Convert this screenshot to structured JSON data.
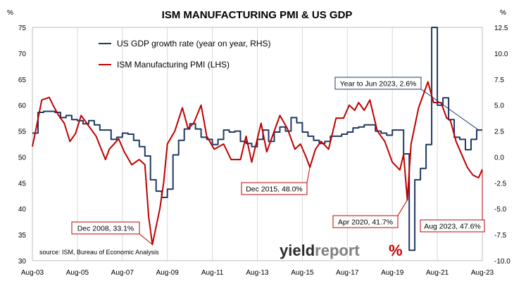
{
  "chart_data": {
    "type": "line",
    "title": "ISM MANUFACTURING PMI & US GDP",
    "y_left_unit": "%",
    "y_right_unit": "%",
    "y_left": {
      "min": 30,
      "max": 75,
      "ticks": [
        "30",
        "35",
        "40",
        "45",
        "50",
        "55",
        "60",
        "65",
        "70",
        "75"
      ]
    },
    "y_right": {
      "min": -10,
      "max": 12.5,
      "ticks": [
        "-10.0",
        "-7.5",
        "-5.0",
        "-2.5",
        "0.0",
        "2.5",
        "5.0",
        "7.5",
        "10.0",
        "12.5"
      ]
    },
    "x_range": [
      "2003-08",
      "2023-08"
    ],
    "x_ticks": [
      "Aug-03",
      "Aug-05",
      "Aug-07",
      "Aug-09",
      "Aug-11",
      "Aug-13",
      "Aug-15",
      "Aug-17",
      "Aug-19",
      "Aug-21",
      "Aug-23"
    ],
    "grid": "vertical",
    "legend_position": "top-left",
    "series": [
      {
        "name": "US GDP growth rate (year on year, RHS)",
        "axis": "right",
        "color": "#1f3864",
        "step": true,
        "points": [
          [
            "2003-08",
            2.3
          ],
          [
            "2003-11",
            4.3
          ],
          [
            "2004-02",
            4.4
          ],
          [
            "2004-05",
            4.4
          ],
          [
            "2004-08",
            4.3
          ],
          [
            "2004-11",
            3.8
          ],
          [
            "2005-02",
            4.0
          ],
          [
            "2005-05",
            3.6
          ],
          [
            "2005-08",
            3.5
          ],
          [
            "2005-11",
            3.2
          ],
          [
            "2006-02",
            3.5
          ],
          [
            "2006-05",
            3.1
          ],
          [
            "2006-08",
            2.6
          ],
          [
            "2006-11",
            2.6
          ],
          [
            "2007-02",
            1.7
          ],
          [
            "2007-05",
            1.9
          ],
          [
            "2007-08",
            2.3
          ],
          [
            "2007-11",
            2.2
          ],
          [
            "2008-02",
            1.6
          ],
          [
            "2008-05",
            1.0
          ],
          [
            "2008-08",
            0.1
          ],
          [
            "2008-11",
            -2.2
          ],
          [
            "2009-02",
            -3.3
          ],
          [
            "2009-05",
            -3.9
          ],
          [
            "2009-08",
            -3.1
          ],
          [
            "2009-11",
            0.2
          ],
          [
            "2010-02",
            1.6
          ],
          [
            "2010-05",
            2.7
          ],
          [
            "2010-08",
            3.2
          ],
          [
            "2010-11",
            2.7
          ],
          [
            "2011-02",
            1.9
          ],
          [
            "2011-05",
            1.7
          ],
          [
            "2011-08",
            1.2
          ],
          [
            "2011-11",
            1.7
          ],
          [
            "2012-02",
            2.6
          ],
          [
            "2012-05",
            2.4
          ],
          [
            "2012-08",
            2.5
          ],
          [
            "2012-11",
            1.5
          ],
          [
            "2013-02",
            1.3
          ],
          [
            "2013-05",
            1.0
          ],
          [
            "2013-08",
            1.7
          ],
          [
            "2013-11",
            2.6
          ],
          [
            "2014-02",
            1.5
          ],
          [
            "2014-05",
            2.4
          ],
          [
            "2014-08",
            2.9
          ],
          [
            "2014-11",
            2.5
          ],
          [
            "2015-02",
            3.8
          ],
          [
            "2015-05",
            3.3
          ],
          [
            "2015-08",
            2.4
          ],
          [
            "2015-11",
            2.0
          ],
          [
            "2016-02",
            1.6
          ],
          [
            "2016-05",
            1.3
          ],
          [
            "2016-08",
            1.5
          ],
          [
            "2016-11",
            2.0
          ],
          [
            "2017-02",
            2.0
          ],
          [
            "2017-05",
            2.2
          ],
          [
            "2017-08",
            2.4
          ],
          [
            "2017-11",
            2.8
          ],
          [
            "2018-02",
            2.9
          ],
          [
            "2018-05",
            3.1
          ],
          [
            "2018-08",
            3.1
          ],
          [
            "2018-11",
            2.5
          ],
          [
            "2019-02",
            2.3
          ],
          [
            "2019-05",
            2.1
          ],
          [
            "2019-08",
            2.6
          ],
          [
            "2019-11",
            2.6
          ],
          [
            "2020-02",
            0.3
          ],
          [
            "2020-05",
            -9.0
          ],
          [
            "2020-08",
            -2.2
          ],
          [
            "2020-11",
            -1.1
          ],
          [
            "2021-02",
            1.2
          ],
          [
            "2021-05",
            12.5
          ],
          [
            "2021-08",
            5.0
          ],
          [
            "2021-11",
            5.7
          ],
          [
            "2022-02",
            3.6
          ],
          [
            "2022-05",
            1.9
          ],
          [
            "2022-08",
            1.7
          ],
          [
            "2022-11",
            0.7
          ],
          [
            "2023-02",
            1.7
          ],
          [
            "2023-05",
            2.6
          ],
          [
            "2023-08",
            2.6
          ]
        ]
      },
      {
        "name": "ISM Manufacturing PMI (LHS)",
        "axis": "left",
        "color": "#c00000",
        "step": false,
        "points": [
          [
            "2003-08",
            52.0
          ],
          [
            "2003-10",
            55.5
          ],
          [
            "2004-01",
            61.0
          ],
          [
            "2004-05",
            61.5
          ],
          [
            "2004-07",
            60.0
          ],
          [
            "2004-10",
            58.0
          ],
          [
            "2005-01",
            56.5
          ],
          [
            "2005-04",
            53.0
          ],
          [
            "2005-07",
            54.5
          ],
          [
            "2005-10",
            58.0
          ],
          [
            "2006-01",
            56.5
          ],
          [
            "2006-06",
            54.0
          ],
          [
            "2006-11",
            49.5
          ],
          [
            "2007-01",
            51.5
          ],
          [
            "2007-06",
            53.5
          ],
          [
            "2007-09",
            51.0
          ],
          [
            "2008-01",
            48.5
          ],
          [
            "2008-05",
            49.5
          ],
          [
            "2008-08",
            48.5
          ],
          [
            "2008-10",
            38.5
          ],
          [
            "2008-12",
            33.1
          ],
          [
            "2009-04",
            40.0
          ],
          [
            "2009-06",
            45.0
          ],
          [
            "2009-08",
            52.5
          ],
          [
            "2009-12",
            55.0
          ],
          [
            "2010-04",
            59.5
          ],
          [
            "2010-07",
            55.5
          ],
          [
            "2010-10",
            56.5
          ],
          [
            "2011-02",
            60.0
          ],
          [
            "2011-05",
            54.0
          ],
          [
            "2011-09",
            51.5
          ],
          [
            "2012-02",
            52.5
          ],
          [
            "2012-06",
            49.5
          ],
          [
            "2012-11",
            49.5
          ],
          [
            "2013-02",
            54.0
          ],
          [
            "2013-05",
            49.0
          ],
          [
            "2013-10",
            56.5
          ],
          [
            "2014-01",
            51.0
          ],
          [
            "2014-05",
            55.0
          ],
          [
            "2014-08",
            58.0
          ],
          [
            "2014-12",
            55.5
          ],
          [
            "2015-04",
            51.5
          ],
          [
            "2015-07",
            52.5
          ],
          [
            "2015-10",
            50.0
          ],
          [
            "2015-12",
            48.0
          ],
          [
            "2016-03",
            51.5
          ],
          [
            "2016-06",
            53.0
          ],
          [
            "2016-10",
            51.5
          ],
          [
            "2017-02",
            57.5
          ],
          [
            "2017-06",
            57.5
          ],
          [
            "2017-09",
            60.0
          ],
          [
            "2017-12",
            59.0
          ],
          [
            "2018-02",
            60.5
          ],
          [
            "2018-05",
            59.0
          ],
          [
            "2018-08",
            61.0
          ],
          [
            "2018-12",
            55.0
          ],
          [
            "2019-04",
            53.0
          ],
          [
            "2019-08",
            49.0
          ],
          [
            "2019-12",
            47.5
          ],
          [
            "2020-02",
            50.5
          ],
          [
            "2020-04",
            41.7
          ],
          [
            "2020-06",
            52.5
          ],
          [
            "2020-10",
            59.5
          ],
          [
            "2021-03",
            64.5
          ],
          [
            "2021-06",
            60.5
          ],
          [
            "2021-10",
            60.5
          ],
          [
            "2022-01",
            57.5
          ],
          [
            "2022-03",
            57.0
          ],
          [
            "2022-06",
            53.0
          ],
          [
            "2022-09",
            50.5
          ],
          [
            "2022-12",
            48.0
          ],
          [
            "2023-03",
            46.5
          ],
          [
            "2023-06",
            46.0
          ],
          [
            "2023-08",
            47.6
          ]
        ]
      }
    ],
    "annotations": [
      {
        "text": "Year to Jun 2023, 2.6%",
        "target": [
          "2023-06",
          2.6
        ],
        "axis": "right",
        "color": "#1f3864"
      },
      {
        "text": "Dec 2015, 48.0%",
        "target": [
          "2015-12",
          48.0
        ],
        "axis": "left",
        "color": "#c00000"
      },
      {
        "text": "Dec 2008, 33.1%",
        "target": [
          "2008-12",
          33.1
        ],
        "axis": "left",
        "color": "#c00000"
      },
      {
        "text": "Apr 2020, 41.7%",
        "target": [
          "2020-04",
          41.7
        ],
        "axis": "left",
        "color": "#c00000"
      },
      {
        "text": "Aug 2023, 47.6%",
        "target": [
          "2023-08",
          47.6
        ],
        "axis": "left",
        "color": "#c00000"
      }
    ],
    "source": "source: ISM, Bureau of Economic Analysis"
  },
  "logo": {
    "text_a": "yield",
    "text_b": "report",
    "glyph": "%"
  }
}
